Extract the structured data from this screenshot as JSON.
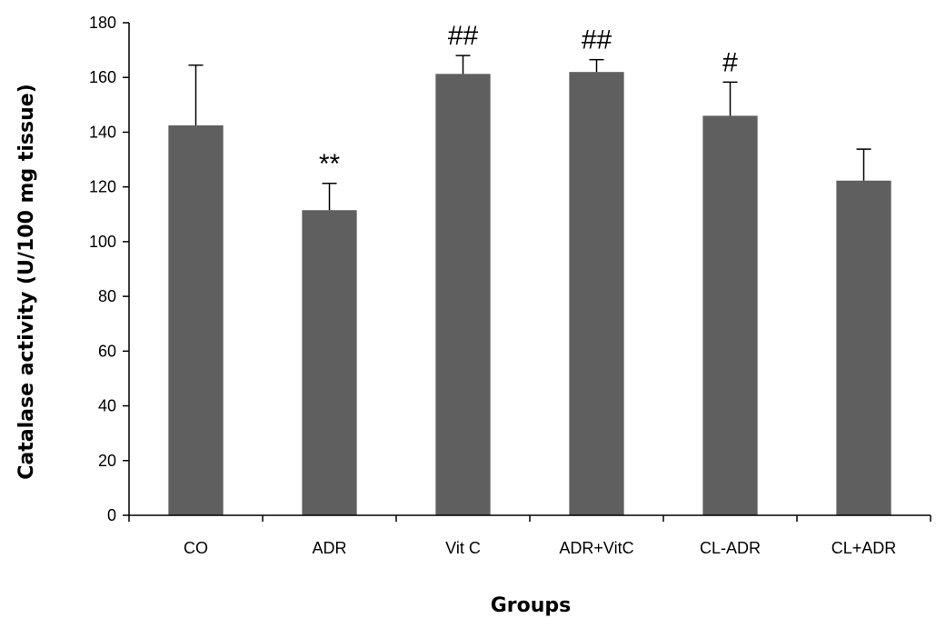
{
  "chart_data": {
    "type": "bar",
    "title": "",
    "xlabel": "Groups",
    "ylabel": "Catalase activity (U/100 mg tissue)",
    "ylim": [
      0,
      180
    ],
    "yticks": [
      0,
      20,
      40,
      60,
      80,
      100,
      120,
      140,
      160,
      180
    ],
    "categories": [
      "CO",
      "ADR",
      "Vit C",
      "ADR+VitC",
      "CL-ADR",
      "CL+ADR"
    ],
    "values": [
      142.5,
      111.5,
      161.3,
      162,
      146,
      122.3
    ],
    "errors": [
      22,
      9.8,
      6.7,
      4.5,
      12.3,
      11.5
    ],
    "annotations": [
      "",
      "**",
      "##",
      "##",
      "#",
      ""
    ],
    "bar_color": "#5f5f5f",
    "grid": false,
    "legend": "none"
  }
}
